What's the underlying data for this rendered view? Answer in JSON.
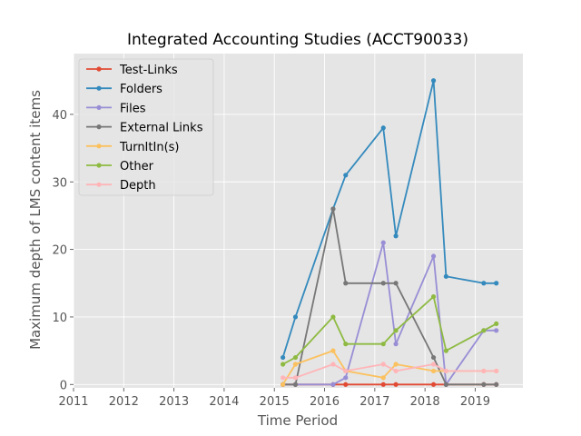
{
  "chart_data": {
    "type": "line",
    "title": "Integrated Accounting Studies (ACCT90033)",
    "xlabel": "Time Period",
    "ylabel": "Maximum depth of LMS content items",
    "xlim": [
      2011.0,
      2019.95
    ],
    "ylim": [
      -0.5,
      49.0
    ],
    "x_ticks": [
      2011,
      2012,
      2013,
      2014,
      2015,
      2016,
      2017,
      2018,
      2019
    ],
    "y_ticks": [
      0,
      10,
      20,
      30,
      40
    ],
    "grid": true,
    "legend_position": "top-left",
    "x": [
      2015.17,
      2015.42,
      2016.17,
      2016.42,
      2017.17,
      2017.42,
      2018.17,
      2018.42,
      2019.17,
      2019.42
    ],
    "series": [
      {
        "name": "Test-Links",
        "color": "#E24A33",
        "values": [
          0,
          0,
          0,
          0,
          0,
          0,
          0,
          0,
          0,
          0
        ]
      },
      {
        "name": "Folders",
        "color": "#348ABD",
        "values": [
          4,
          10,
          26,
          31,
          38,
          22,
          45,
          16,
          15,
          15
        ]
      },
      {
        "name": "Files",
        "color": "#988ED5",
        "values": [
          0,
          0,
          0,
          1,
          21,
          6,
          19,
          0,
          8,
          8
        ]
      },
      {
        "name": "External Links",
        "color": "#777777",
        "values": [
          0,
          0,
          26,
          15,
          15,
          15,
          4,
          0,
          0,
          0
        ]
      },
      {
        "name": "TurnItIn(s)",
        "color": "#FBC15E",
        "values": [
          0,
          3,
          5,
          2,
          1,
          3,
          2,
          2,
          2,
          2
        ]
      },
      {
        "name": "Other",
        "color": "#8EBA42",
        "values": [
          3,
          4,
          10,
          6,
          6,
          8,
          13,
          5,
          8,
          9
        ]
      },
      {
        "name": "Depth",
        "color": "#FFB5B8",
        "values": [
          1,
          1,
          3,
          2,
          3,
          2,
          3,
          2,
          2,
          2
        ]
      }
    ]
  }
}
